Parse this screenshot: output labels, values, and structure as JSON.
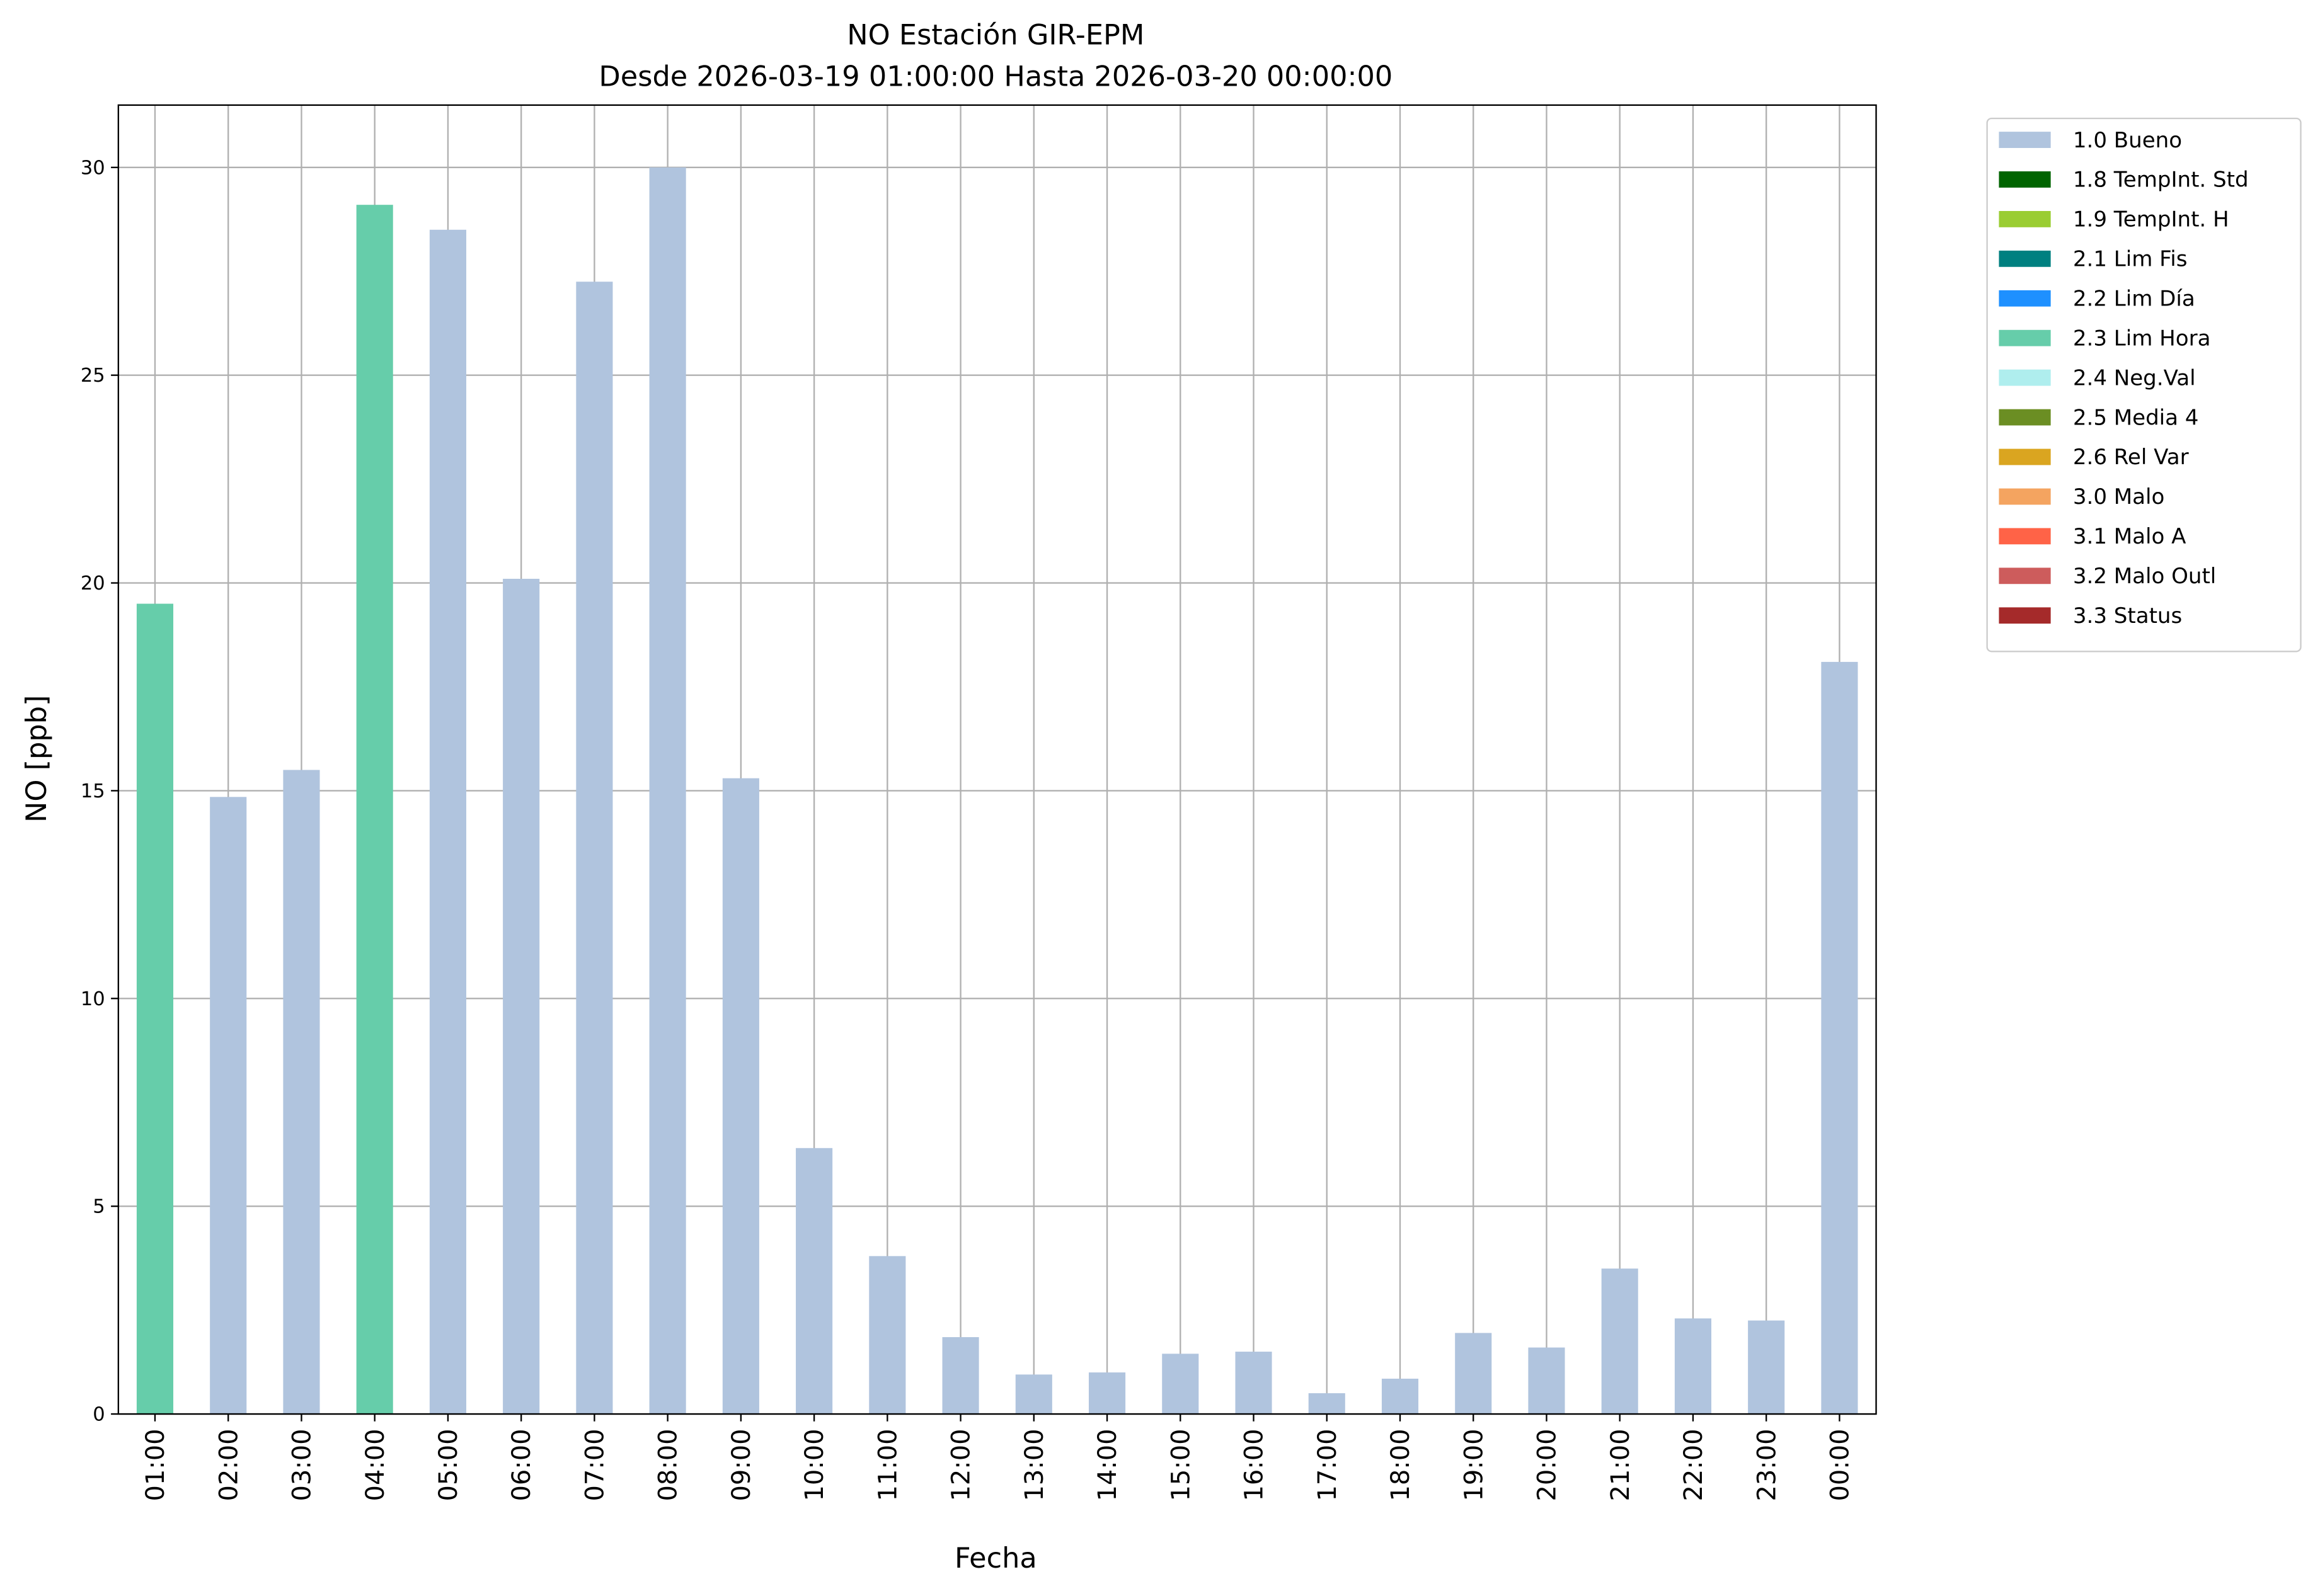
{
  "chart_data": {
    "type": "stacked_bar",
    "title": "NO Estación GIR-EPM",
    "subtitle": "Desde 2026-03-19 01:00:00 Hasta 2026-03-20 00:00:00",
    "x_label": "Fecha",
    "y_label": "NO [ppb]",
    "categories": [
      "01:00",
      "02:00",
      "03:00",
      "04:00",
      "05:00",
      "06:00",
      "07:00",
      "08:00",
      "09:00",
      "10:00",
      "11:00",
      "12:00",
      "13:00",
      "14:00",
      "15:00",
      "16:00",
      "17:00",
      "18:00",
      "19:00",
      "20:00",
      "21:00",
      "22:00",
      "23:00",
      "00:00"
    ],
    "ylim": [
      0,
      31.5
    ],
    "yticks": [
      0,
      5,
      10,
      15,
      20,
      25,
      30
    ],
    "grid": true,
    "legend_position": "outside-right",
    "series": [
      {
        "name": "1.0 Bueno",
        "color": "#b0c4de",
        "values": [
          null,
          14.85,
          15.5,
          null,
          28.5,
          20.1,
          27.25,
          30.0,
          15.3,
          6.4,
          3.8,
          1.85,
          0.95,
          1.0,
          1.45,
          1.5,
          0.5,
          0.85,
          1.95,
          1.6,
          3.5,
          2.3,
          2.25,
          18.1
        ]
      },
      {
        "name": "1.8 TempInt. Std",
        "color": "#006400",
        "values": [
          null,
          null,
          null,
          null,
          null,
          null,
          null,
          null,
          null,
          null,
          null,
          null,
          null,
          null,
          null,
          null,
          null,
          null,
          null,
          null,
          null,
          null,
          null,
          null
        ]
      },
      {
        "name": "1.9 TempInt. H",
        "color": "#9acd32",
        "values": [
          null,
          null,
          null,
          null,
          null,
          null,
          null,
          null,
          null,
          null,
          null,
          null,
          null,
          null,
          null,
          null,
          null,
          null,
          null,
          null,
          null,
          null,
          null,
          null
        ]
      },
      {
        "name": "2.1 Lim Fis",
        "color": "#008080",
        "values": [
          null,
          null,
          null,
          null,
          null,
          null,
          null,
          null,
          null,
          null,
          null,
          null,
          null,
          null,
          null,
          null,
          null,
          null,
          null,
          null,
          null,
          null,
          null,
          null
        ]
      },
      {
        "name": "2.2 Lim Día",
        "color": "#1e90ff",
        "values": [
          null,
          null,
          null,
          null,
          null,
          null,
          null,
          null,
          null,
          null,
          null,
          null,
          null,
          null,
          null,
          null,
          null,
          null,
          null,
          null,
          null,
          null,
          null,
          null
        ]
      },
      {
        "name": "2.3 Lim Hora",
        "color": "#66cdaa",
        "values": [
          19.5,
          null,
          null,
          29.1,
          null,
          null,
          null,
          null,
          null,
          null,
          null,
          null,
          null,
          null,
          null,
          null,
          null,
          null,
          null,
          null,
          null,
          null,
          null,
          null
        ]
      },
      {
        "name": "2.4 Neg.Val",
        "color": "#afeeee",
        "values": [
          null,
          null,
          null,
          null,
          null,
          null,
          null,
          null,
          null,
          null,
          null,
          null,
          null,
          null,
          null,
          null,
          null,
          null,
          null,
          null,
          null,
          null,
          null,
          null
        ]
      },
      {
        "name": "2.5 Media 4",
        "color": "#6b8e23",
        "values": [
          null,
          null,
          null,
          null,
          null,
          null,
          null,
          null,
          null,
          null,
          null,
          null,
          null,
          null,
          null,
          null,
          null,
          null,
          null,
          null,
          null,
          null,
          null,
          null
        ]
      },
      {
        "name": "2.6 Rel Var",
        "color": "#daa520",
        "values": [
          null,
          null,
          null,
          null,
          null,
          null,
          null,
          null,
          null,
          null,
          null,
          null,
          null,
          null,
          null,
          null,
          null,
          null,
          null,
          null,
          null,
          null,
          null,
          null
        ]
      },
      {
        "name": "3.0 Malo",
        "color": "#f4a460",
        "values": [
          null,
          null,
          null,
          null,
          null,
          null,
          null,
          null,
          null,
          null,
          null,
          null,
          null,
          null,
          null,
          null,
          null,
          null,
          null,
          null,
          null,
          null,
          null,
          null
        ]
      },
      {
        "name": "3.1 Malo A",
        "color": "#ff6347",
        "values": [
          null,
          null,
          null,
          null,
          null,
          null,
          null,
          null,
          null,
          null,
          null,
          null,
          null,
          null,
          null,
          null,
          null,
          null,
          null,
          null,
          null,
          null,
          null,
          null
        ]
      },
      {
        "name": "3.2 Malo Outl",
        "color": "#cd5c5c",
        "values": [
          null,
          null,
          null,
          null,
          null,
          null,
          null,
          null,
          null,
          null,
          null,
          null,
          null,
          null,
          null,
          null,
          null,
          null,
          null,
          null,
          null,
          null,
          null,
          null
        ]
      },
      {
        "name": "3.3 Status",
        "color": "#a52a2a",
        "values": [
          null,
          null,
          null,
          null,
          null,
          null,
          null,
          null,
          null,
          null,
          null,
          null,
          null,
          null,
          null,
          null,
          null,
          null,
          null,
          null,
          null,
          null,
          null,
          null
        ]
      }
    ]
  }
}
